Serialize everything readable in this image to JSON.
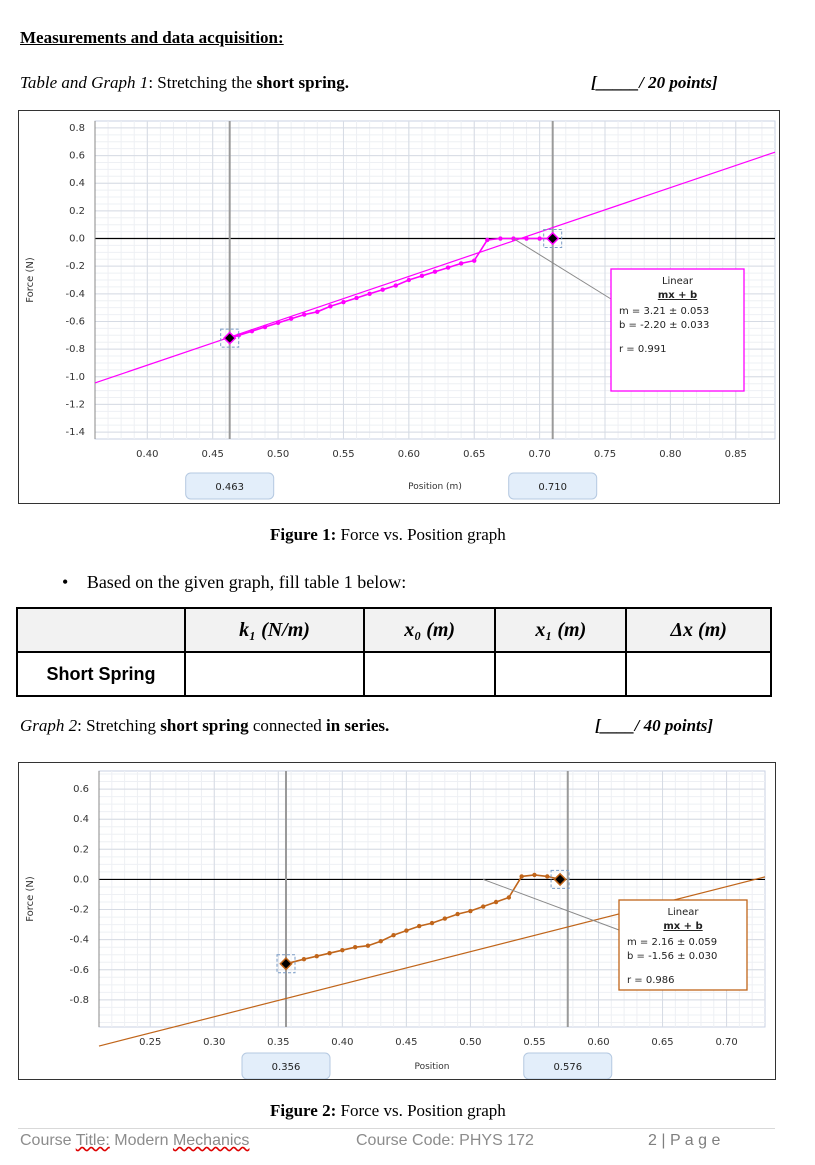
{
  "heading": "Measurements and data acquisition:",
  "section1": {
    "prefix": "Table and Graph 1",
    "colon": ": Stretching the ",
    "bold": "short spring.",
    "points": "[_____/ 20 points]"
  },
  "figure1": {
    "caption_bold": "Figure 1:",
    "caption_rest": " Force vs. Position graph",
    "ylabel": "Force (N)",
    "xlabel": "Position (m)",
    "cursor_left": "0.463",
    "cursor_right": "0.710",
    "fit": {
      "title": "Linear",
      "formula": "mx + b",
      "m": "m = 3.21  ± 0.053",
      "b": "b = -2.20  ± 0.033",
      "r": "r = 0.991"
    }
  },
  "bullet": "Based on the given graph, fill table 1 below:",
  "table1": {
    "headers": [
      "",
      "k₁ (N/m)",
      "x₀ (m)",
      "x₁ (m)",
      "Δx (m)"
    ],
    "row_label": "Short Spring"
  },
  "section2": {
    "prefix": "Graph 2",
    "colon": ": Stretching ",
    "bold1": "short spring",
    "mid": " connected ",
    "bold2": "in series.",
    "points": "[____/ 40 points]"
  },
  "figure2": {
    "caption_bold": "Figure 2:",
    "caption_rest": " Force vs. Position graph",
    "ylabel": "Force (N)",
    "xlabel": "Position",
    "cursor_left": "0.356",
    "cursor_right": "0.576",
    "fit": {
      "title": "Linear",
      "formula": "mx + b",
      "m": "m = 2.16  ± 0.059",
      "b": "b = -1.56 ± 0.030",
      "r": "r = 0.986"
    }
  },
  "footer": {
    "title_a": "Course ",
    "title_b": "Title:",
    "title_c": " Modern ",
    "title_d": "Mechanics",
    "code": "Course Code: PHYS 172",
    "page": "2 | P a g e"
  },
  "chart_data": [
    {
      "type": "scatter",
      "xlabel": "Position (m)",
      "ylabel": "Force (N)",
      "xlim": [
        0.36,
        0.88
      ],
      "ylim": [
        -1.45,
        0.85
      ],
      "x_ticks": [
        0.4,
        0.45,
        0.5,
        0.55,
        0.6,
        0.65,
        0.7,
        0.75,
        0.8,
        0.85
      ],
      "y_ticks": [
        0.8,
        0.6,
        0.4,
        0.2,
        0.0,
        -0.2,
        -0.4,
        -0.6,
        -0.8,
        -1.0,
        -1.2,
        -1.4
      ],
      "series": [
        {
          "x": [
            0.463,
            0.47,
            0.48,
            0.49,
            0.5,
            0.51,
            0.52,
            0.53,
            0.54,
            0.55,
            0.56,
            0.57,
            0.58,
            0.59,
            0.6,
            0.61,
            0.62,
            0.63,
            0.64,
            0.65,
            0.66,
            0.67,
            0.68,
            0.69,
            0.7,
            0.71
          ],
          "y": [
            -0.72,
            -0.7,
            -0.67,
            -0.64,
            -0.61,
            -0.58,
            -0.55,
            -0.53,
            -0.49,
            -0.46,
            -0.43,
            -0.4,
            -0.37,
            -0.34,
            -0.3,
            -0.27,
            -0.24,
            -0.21,
            -0.18,
            -0.16,
            -0.01,
            0.0,
            0.0,
            0.0,
            0.0,
            0.0
          ]
        }
      ],
      "fit": {
        "m": 3.21,
        "b": -2.2
      },
      "cursors": [
        0.463,
        0.71
      ]
    },
    {
      "type": "scatter",
      "xlabel": "Position",
      "ylabel": "Force (N)",
      "xlim": [
        0.21,
        0.73
      ],
      "ylim": [
        -0.98,
        0.72
      ],
      "x_ticks": [
        0.25,
        0.3,
        0.35,
        0.4,
        0.45,
        0.5,
        0.55,
        0.6,
        0.65,
        0.7
      ],
      "y_ticks": [
        0.6,
        0.4,
        0.2,
        0.0,
        -0.2,
        -0.4,
        -0.6,
        -0.8
      ],
      "series": [
        {
          "x": [
            0.356,
            0.37,
            0.38,
            0.39,
            0.4,
            0.41,
            0.42,
            0.43,
            0.44,
            0.45,
            0.46,
            0.47,
            0.48,
            0.49,
            0.5,
            0.51,
            0.52,
            0.53,
            0.54,
            0.55,
            0.56,
            0.57
          ],
          "y": [
            -0.56,
            -0.53,
            -0.51,
            -0.49,
            -0.47,
            -0.45,
            -0.44,
            -0.41,
            -0.37,
            -0.34,
            -0.31,
            -0.29,
            -0.26,
            -0.23,
            -0.21,
            -0.18,
            -0.15,
            -0.12,
            0.02,
            0.03,
            0.02,
            0.0
          ]
        }
      ],
      "fit": {
        "m": 2.16,
        "b": -1.56
      },
      "cursors": [
        0.356,
        0.576
      ]
    }
  ]
}
